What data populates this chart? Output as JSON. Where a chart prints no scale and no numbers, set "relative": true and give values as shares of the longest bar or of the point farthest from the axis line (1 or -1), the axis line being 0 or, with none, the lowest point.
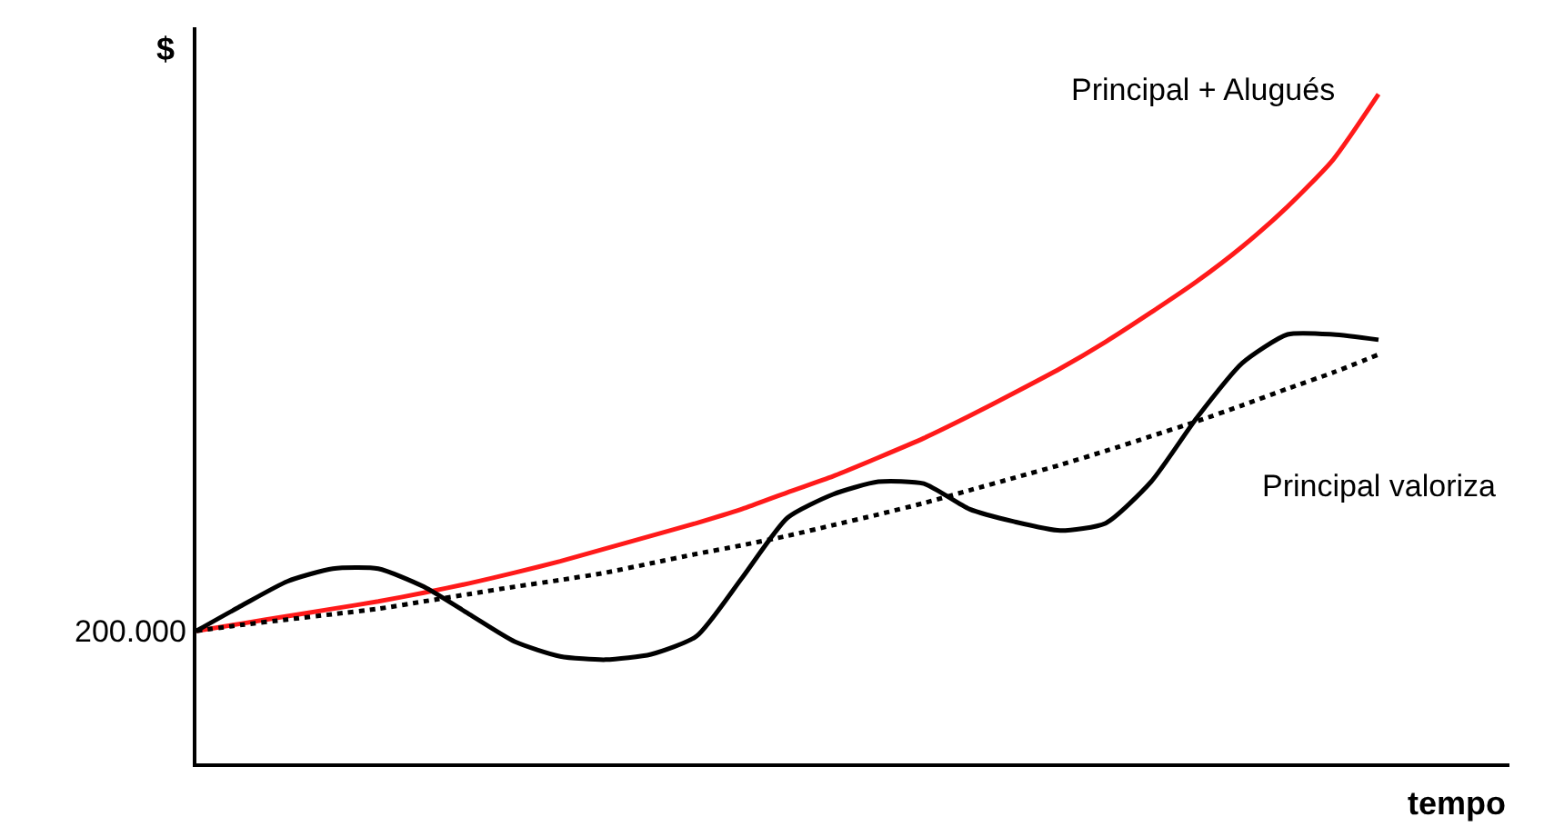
{
  "chart_data": {
    "type": "line",
    "relative": true,
    "xlabel": "tempo",
    "ylabel": "$",
    "categories": [
      null,
      null,
      null,
      null,
      null,
      null,
      null,
      null,
      null,
      null,
      null,
      null,
      null,
      null,
      null,
      null,
      null,
      null,
      null,
      null,
      null,
      null,
      null,
      null,
      null,
      null,
      null
    ],
    "series": [
      {
        "name": "Principal + Alugués",
        "color": "#ff1a1a",
        "line_style": "solid",
        "values": [
          0.198,
          0.209,
          0.22,
          0.231,
          0.242,
          0.255,
          0.269,
          0.285,
          0.302,
          0.321,
          0.34,
          0.359,
          0.38,
          0.405,
          0.429,
          0.457,
          0.486,
          0.519,
          0.554,
          0.59,
          0.63,
          0.674,
          0.72,
          0.772,
          0.832,
          0.902,
          1.0
        ]
      },
      {
        "color": "#000000",
        "line_style": "solid",
        "values": [
          0.198,
          0.236,
          0.272,
          0.291,
          0.291,
          0.264,
          0.223,
          0.182,
          0.16,
          0.155,
          0.163,
          0.19,
          0.277,
          0.367,
          0.402,
          0.421,
          0.418,
          0.38,
          0.361,
          0.348,
          0.359,
          0.421,
          0.516,
          0.598,
          0.641,
          0.641,
          0.633
        ]
      },
      {
        "name": "Principal valoriza",
        "color": "#000000",
        "line_style": "dotted",
        "values": [
          0.198,
          0.207,
          0.215,
          0.223,
          0.231,
          0.242,
          0.253,
          0.264,
          0.274,
          0.285,
          0.299,
          0.313,
          0.326,
          0.34,
          0.356,
          0.372,
          0.389,
          0.408,
          0.427,
          0.446,
          0.467,
          0.489,
          0.511,
          0.535,
          0.56,
          0.584,
          0.611
        ]
      }
    ],
    "annotations": [
      "200.000"
    ]
  }
}
